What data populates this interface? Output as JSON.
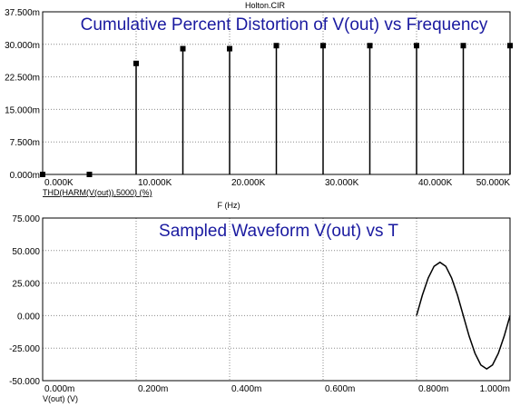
{
  "file_title": "Holton.CIR",
  "colors": {
    "title": "#1a1aa0",
    "trace": "#000000",
    "grid": "#8c8c8c"
  },
  "chart_data": [
    {
      "type": "bar",
      "style": "stem",
      "title": "Cumulative Percent Distortion of V(out) vs Frequency",
      "xlabel": "F (Hz)",
      "ylabel": "THD(HARM(V(out)),5000) (%)",
      "x_ticks": [
        "0.000K",
        "10.000K",
        "20.000K",
        "30.000K",
        "40.000K",
        "50.000K"
      ],
      "y_ticks": [
        "0.000m",
        "7.500m",
        "15.000m",
        "22.500m",
        "30.000m",
        "37.500m"
      ],
      "xlim": [
        0,
        50000
      ],
      "ylim": [
        0,
        37.5
      ],
      "grid": true,
      "x": [
        0,
        5000,
        10000,
        15000,
        20000,
        25000,
        30000,
        35000,
        40000,
        45000,
        50000
      ],
      "values": [
        0,
        0,
        25.6,
        29.0,
        29.0,
        29.7,
        29.7,
        29.7,
        29.7,
        29.7,
        29.7
      ]
    },
    {
      "type": "line",
      "title": "Sampled Waveform  V(out) vs T",
      "xlabel": "V(out) (V)",
      "ylabel": "",
      "x_ticks": [
        "0.000m",
        "0.200m",
        "0.400m",
        "0.600m",
        "0.800m",
        "1.000m"
      ],
      "y_ticks": [
        "-50.000",
        "-25.000",
        "0.000",
        "25.000",
        "50.000",
        "75.000"
      ],
      "xlim": [
        0,
        1.0
      ],
      "ylim": [
        -50,
        75
      ],
      "grid": true,
      "series": [
        {
          "x": [
            0.8,
            0.8125,
            0.825,
            0.8375,
            0.85,
            0.8625,
            0.875,
            0.8875,
            0.9,
            0.9125,
            0.925,
            0.9375,
            0.95,
            0.9625,
            0.975,
            0.9875,
            1.0
          ],
          "values": [
            0,
            15.7,
            29.0,
            37.9,
            41,
            37.9,
            29.0,
            15.7,
            0,
            -15.7,
            -29.0,
            -37.9,
            -41,
            -37.9,
            -29.0,
            -15.7,
            0
          ]
        }
      ]
    }
  ]
}
